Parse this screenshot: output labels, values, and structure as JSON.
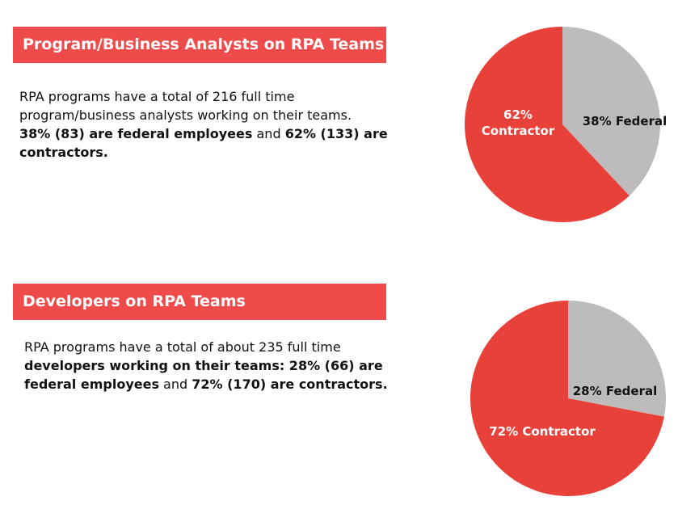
{
  "sections": [
    {
      "header": "Program/Business Analysts on RPA Teams",
      "text_lines": [
        [
          {
            "t": "RPA programs have a total of 216 full time",
            "b": false
          }
        ],
        [
          {
            "t": "program/business analysts working on their teams.",
            "b": false
          }
        ],
        [
          {
            "t": "38% (83) are federal employees",
            "b": true
          },
          {
            "t": " and ",
            "b": false
          },
          {
            "t": "62% (133) are",
            "b": true
          }
        ],
        [
          {
            "t": "contractors.",
            "b": true
          }
        ]
      ]
    },
    {
      "header": "Developers on RPA Teams",
      "text_lines": [
        [
          {
            "t": "RPA programs have a total of about 235 full time",
            "b": false
          }
        ],
        [
          {
            "t": "developers working on their teams: 28% (66) are",
            "b": true
          }
        ],
        [
          {
            "t": "federal employees",
            "b": true
          },
          {
            "t": " and ",
            "b": false
          },
          {
            "t": "72% (170) are contractors.",
            "b": true
          }
        ]
      ]
    }
  ],
  "colors": {
    "header_bg": "#f04b4b",
    "contractor": "#e8413a",
    "federal": "#bdbbbb",
    "contractor_label": "#ffffff",
    "federal_label": "#111111"
  },
  "chart_data": [
    {
      "type": "pie",
      "categories": [
        "Federal",
        "Contractor"
      ],
      "values": [
        38,
        62
      ],
      "labels": [
        [
          "38% Federal"
        ],
        [
          "62%",
          "Contractor"
        ]
      ]
    },
    {
      "type": "pie",
      "categories": [
        "Federal",
        "Contractor"
      ],
      "values": [
        28,
        72
      ],
      "labels": [
        [
          "28% Federal"
        ],
        [
          "72% Contractor"
        ]
      ]
    }
  ]
}
